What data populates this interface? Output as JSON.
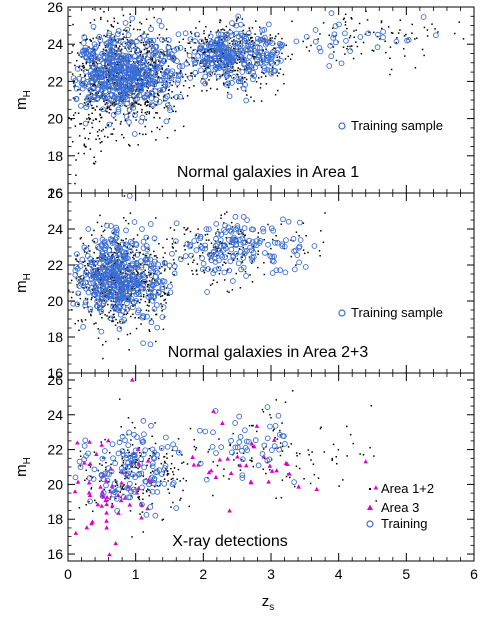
{
  "chart_data": {
    "type": "scatter",
    "xlabel_main": "z",
    "xlabel_sub": "s",
    "ylabel_main": "m",
    "ylabel_sub": "H",
    "xlim": [
      0,
      6
    ],
    "x_ticks": [
      0,
      1,
      2,
      3,
      4,
      5,
      6
    ],
    "x_tick_labels": [
      "0",
      "1",
      "2",
      "3",
      "4",
      "5",
      "6"
    ],
    "colors": {
      "point": "#000000",
      "training": "#3b6fd6",
      "area3": "#e000d0"
    },
    "panels": [
      {
        "title": "Normal galaxies in Area 1",
        "ylim": [
          16,
          26
        ],
        "y_ticks": [
          16,
          18,
          20,
          22,
          24,
          26
        ],
        "y_tick_labels": [
          "16",
          "18",
          "20",
          "22",
          "24",
          "26"
        ],
        "legend": [
          {
            "label": "Training sample",
            "marker": "open-circle"
          }
        ],
        "legend_position": "right-center",
        "series": [
          {
            "kind": "all",
            "generated_points": [
              {
                "n": 900,
                "x_range": [
                  0.0,
                  1.8
                ],
                "x_peak": 0.7,
                "y_mean": 22.3,
                "y_sd": 1.3
              },
              {
                "n": 420,
                "x_range": [
                  1.6,
                  3.4
                ],
                "x_peak": 2.2,
                "y_mean": 23.3,
                "y_sd": 0.9
              },
              {
                "n": 90,
                "x_range": [
                  3.4,
                  5.9
                ],
                "x_peak": 4.2,
                "y_mean": 24.2,
                "y_sd": 0.7
              },
              {
                "n": 60,
                "x_range": [
                  0.0,
                  0.8
                ],
                "x_peak": 0.4,
                "y_mean": 19.5,
                "y_sd": 0.9
              }
            ]
          },
          {
            "kind": "training",
            "generated_points": [
              {
                "n": 500,
                "x_range": [
                  0.05,
                  1.8
                ],
                "x_peak": 0.75,
                "y_mean": 22.4,
                "y_sd": 1.1
              },
              {
                "n": 260,
                "x_range": [
                  1.7,
                  3.3
                ],
                "x_peak": 2.4,
                "y_mean": 23.3,
                "y_sd": 0.7
              },
              {
                "n": 30,
                "x_range": [
                  3.3,
                  5.9
                ],
                "x_peak": 4.0,
                "y_mean": 24.4,
                "y_sd": 0.6
              }
            ]
          }
        ]
      },
      {
        "title": "Normal galaxies in Area 2+3",
        "ylim": [
          16,
          26
        ],
        "y_ticks": [
          16,
          18,
          20,
          22,
          24,
          26
        ],
        "y_tick_labels": [
          "16",
          "18",
          "20",
          "22",
          "24",
          "26"
        ],
        "legend": [
          {
            "label": "Training sample",
            "marker": "open-circle"
          }
        ],
        "legend_position": "right-center",
        "series": [
          {
            "kind": "all",
            "generated_points": [
              {
                "n": 700,
                "x_range": [
                  0.0,
                  1.6
                ],
                "x_peak": 0.7,
                "y_mean": 21.2,
                "y_sd": 1.3
              },
              {
                "n": 160,
                "x_range": [
                  1.4,
                  3.2
                ],
                "x_peak": 2.2,
                "y_mean": 22.7,
                "y_sd": 0.9
              },
              {
                "n": 20,
                "x_range": [
                  3.0,
                  4.0
                ],
                "x_peak": 3.4,
                "y_mean": 23.2,
                "y_sd": 0.8
              }
            ]
          },
          {
            "kind": "training",
            "generated_points": [
              {
                "n": 420,
                "x_range": [
                  0.05,
                  1.6
                ],
                "x_peak": 0.75,
                "y_mean": 21.3,
                "y_sd": 1.2
              },
              {
                "n": 150,
                "x_range": [
                  1.5,
                  3.7
                ],
                "x_peak": 2.4,
                "y_mean": 23.0,
                "y_sd": 0.8
              }
            ]
          }
        ]
      },
      {
        "title": "X-ray detections",
        "ylim": [
          15.6,
          26.4
        ],
        "y_ticks": [
          16,
          18,
          20,
          22,
          24,
          26
        ],
        "y_tick_labels": [
          "16",
          "18",
          "20",
          "22",
          "24",
          "26"
        ],
        "legend": [
          {
            "label": "Area 1+2",
            "marker": "dot"
          },
          {
            "label": "Area 3",
            "marker": "triangle"
          },
          {
            "label": "Training",
            "marker": "open-circle"
          }
        ],
        "legend_position": "bottom-right",
        "series": [
          {
            "kind": "area12",
            "generated_points": [
              {
                "n": 240,
                "x_range": [
                  0.05,
                  2.0
                ],
                "x_peak": 0.9,
                "y_mean": 20.6,
                "y_sd": 1.3
              },
              {
                "n": 110,
                "x_range": [
                  1.8,
                  4.8
                ],
                "x_peak": 2.8,
                "y_mean": 21.8,
                "y_sd": 1.2
              }
            ]
          },
          {
            "kind": "area3",
            "generated_points": [
              {
                "n": 55,
                "x_range": [
                  0.05,
                  1.3
                ],
                "x_peak": 0.5,
                "y_mean": 19.5,
                "y_sd": 1.5
              },
              {
                "n": 30,
                "x_range": [
                  1.3,
                  4.5
                ],
                "x_peak": 2.5,
                "y_mean": 21.0,
                "y_sd": 1.2
              }
            ],
            "explicit_points": [
              [
                0.95,
                26.0
              ],
              [
                2.15,
                24.2
              ],
              [
                4.4,
                21.3
              ],
              [
                4.55,
                19.8
              ]
            ]
          },
          {
            "kind": "training",
            "generated_points": [
              {
                "n": 130,
                "x_range": [
                  0.05,
                  1.8
                ],
                "x_peak": 0.9,
                "y_mean": 20.8,
                "y_sd": 1.1
              },
              {
                "n": 45,
                "x_range": [
                  1.8,
                  3.7
                ],
                "x_peak": 2.6,
                "y_mean": 22.2,
                "y_sd": 1.0
              }
            ]
          }
        ]
      }
    ]
  }
}
